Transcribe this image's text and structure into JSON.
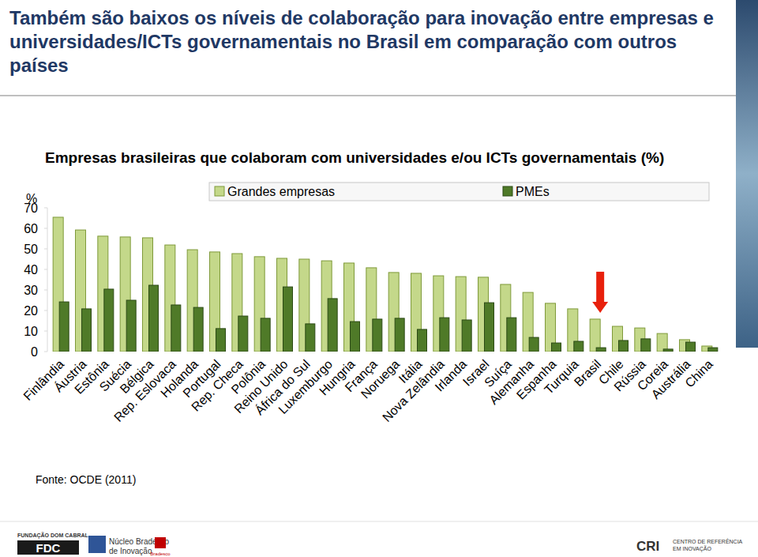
{
  "chart_data": {
    "type": "bar",
    "title": "Também são baixos os níveis de colaboração para inovação entre empresas e universidades/ICTs governamentais no Brasil em comparação com outros países",
    "subtitle": "Empresas brasileiras que colaboram com universidades e/ou ICTs governamentais (%)",
    "ylabel": "%",
    "source": "Fonte: OCDE (2011)",
    "categories": [
      "Finlândia",
      "Áustria",
      "Estônia",
      "Suécia",
      "Bélgica",
      "Rep. Eslovaca",
      "Holanda",
      "Portugal",
      "Rep. Checa",
      "Polônia",
      "Reino Unido",
      "África do Sul",
      "Luxemburgo",
      "Hungria",
      "França",
      "Noruega",
      "Itália",
      "Nova Zelândia",
      "Irlanda",
      "Israel",
      "Suíça",
      "Alemanha",
      "Espanha",
      "Turquia",
      "Brasil",
      "Chile",
      "Rússia",
      "Coreia",
      "Austrália",
      "China"
    ],
    "series": [
      {
        "name": "Grandes empresas",
        "color": "#c4d88a",
        "values": [
          65.4,
          59.2,
          56.2,
          55.8,
          55.4,
          51.9,
          49.6,
          48.5,
          47.7,
          46.2,
          45.4,
          45.0,
          44.2,
          43.1,
          40.8,
          38.5,
          38.1,
          36.9,
          36.5,
          36.2,
          32.7,
          28.8,
          23.5,
          20.8,
          15.8,
          12.3,
          11.5,
          8.8,
          5.8,
          2.7
        ]
      },
      {
        "name": "PMEs",
        "color": "#4f7a28",
        "values": [
          24.2,
          20.8,
          30.4,
          25.0,
          32.3,
          22.7,
          21.5,
          11.2,
          17.3,
          16.2,
          31.5,
          13.5,
          25.8,
          14.6,
          15.8,
          16.2,
          10.8,
          16.5,
          15.4,
          23.8,
          16.5,
          6.9,
          4.2,
          5.0,
          1.9,
          5.4,
          6.2,
          1.2,
          4.6,
          1.9
        ]
      }
    ],
    "ylim": [
      0,
      70
    ],
    "yticks": [
      0,
      10,
      20,
      30,
      40,
      50,
      60,
      70
    ],
    "grid": false,
    "legend": "top",
    "annotations": [
      {
        "type": "arrow",
        "category": "Brasil",
        "color": "#e8200c"
      }
    ]
  },
  "footer": [
    "FUNDAÇÃO DOM CABRAL",
    "FDC",
    "Núcleo Bradesco",
    "de Inovação",
    "Bradesco",
    "CRI",
    "CENTRO DE REFERÊNCIA",
    "EM INOVAÇÃO"
  ]
}
